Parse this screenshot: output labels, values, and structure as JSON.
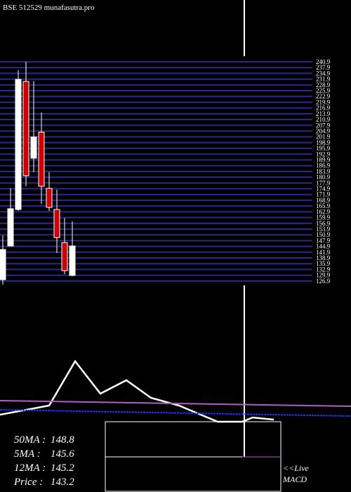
{
  "chart_data": [
    {
      "type": "candlestick",
      "title": "BSE 512529 munafasutra.pro",
      "ylim": [
        125,
        242
      ],
      "yticks": [
        240.9,
        237.9,
        234.9,
        231.9,
        228.9,
        225.9,
        222.9,
        219.9,
        216.9,
        213.9,
        210.9,
        207.9,
        204.9,
        201.9,
        198.9,
        195.9,
        192.9,
        189.9,
        186.9,
        183.9,
        180.9,
        177.9,
        174.9,
        171.9,
        168.9,
        165.9,
        162.9,
        159.9,
        156.9,
        153.9,
        150.9,
        147.9,
        144.9,
        141.9,
        138.9,
        135.9,
        132.9,
        129.9,
        126.9
      ],
      "grid": true,
      "up_color": "#ffffff",
      "down_color": "#cc0000",
      "grid_color": "#2a2a8a",
      "open": [
        127.6,
        145.1,
        164.1,
        230.7,
        190.8,
        204.3,
        175.1,
        164.1,
        146.9,
        129.8
      ],
      "close": [
        143.3,
        164.5,
        231.8,
        181.7,
        201.8,
        176.2,
        165.2,
        149.5,
        132.3,
        145.1
      ],
      "high": [
        150.6,
        175.1,
        236.5,
        240.9,
        231.0,
        214.6,
        183.5,
        174.4,
        159.7,
        157.9
      ],
      "low": [
        125.0,
        145.1,
        163.4,
        176.2,
        183.5,
        167.0,
        163.4,
        141.5,
        130.5,
        129.4
      ]
    },
    {
      "type": "line",
      "xlim": [
        0,
        500
      ],
      "ylim": [
        0,
        100
      ],
      "series": [
        {
          "name": "MACD",
          "color": "#ffffff",
          "x": [
            0,
            70,
            107,
            143,
            180,
            215,
            255,
            310,
            345,
            360,
            390
          ],
          "values": [
            10,
            23,
            86,
            40,
            59,
            34,
            23,
            0,
            0,
            6,
            3
          ]
        },
        {
          "color": "#b060c0",
          "x": [
            0,
            500
          ],
          "values": [
            30,
            22
          ]
        },
        {
          "color": "#2030ff",
          "x": [
            0,
            500
          ],
          "values": [
            17,
            8
          ]
        }
      ],
      "legend": [
        {
          "label": "50MA :",
          "value": 148.8
        },
        {
          "label": "5MA :",
          "value": 145.6
        },
        {
          "label": "12MA :",
          "value": 145.2
        },
        {
          "label": "Price   :",
          "value": 143.2
        }
      ],
      "note": "<<Live",
      "note2": "MACD"
    }
  ]
}
